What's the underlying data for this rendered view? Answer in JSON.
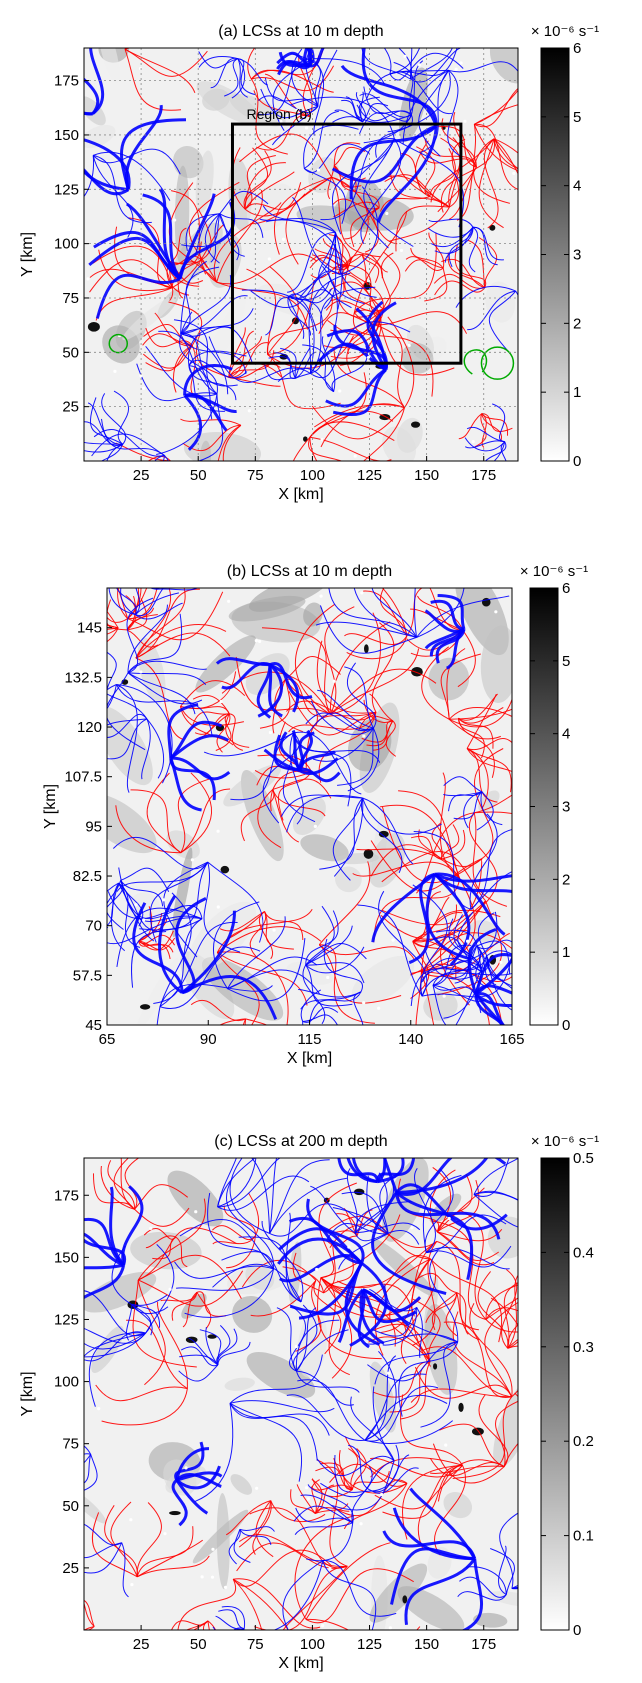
{
  "chart_data": [
    {
      "type": "heatmap",
      "panel": "a",
      "title": "(a) LCSs at 10 m depth",
      "xlabel": "X  [km]",
      "ylabel": "Y [km]",
      "xlim": [
        0,
        190
      ],
      "ylim": [
        0,
        190
      ],
      "xticks": [
        25,
        50,
        75,
        100,
        125,
        150,
        175
      ],
      "yticks": [
        25,
        50,
        75,
        100,
        125,
        150,
        175
      ],
      "grid": true,
      "colorbar": {
        "label": "× 10⁻⁶ s⁻¹",
        "min": 0,
        "max": 6,
        "ticks": [
          0,
          1,
          2,
          3,
          4,
          5,
          6
        ]
      },
      "overlays": [
        {
          "name": "repelling LCS",
          "color": "#ff0000"
        },
        {
          "name": "attracting LCS",
          "color": "#0000ff"
        },
        {
          "name": "eddy boundary",
          "color": "#00aa00"
        }
      ],
      "region": {
        "label": "Region (b)",
        "x": [
          65,
          165
        ],
        "y": [
          45,
          155
        ]
      }
    },
    {
      "type": "heatmap",
      "panel": "b",
      "title": "(b) LCSs at 10 m depth",
      "xlabel": "X  [km]",
      "ylabel": "Y [km]",
      "xlim": [
        65,
        165
      ],
      "ylim": [
        45,
        155
      ],
      "xticks": [
        65,
        90,
        115,
        140,
        165
      ],
      "yticks": [
        45,
        57.5,
        70,
        82.5,
        95,
        107.5,
        120,
        132.5,
        145
      ],
      "grid": false,
      "colorbar": {
        "label": "× 10⁻⁶ s⁻¹",
        "min": 0,
        "max": 6,
        "ticks": [
          0,
          1,
          2,
          3,
          4,
          5,
          6
        ]
      }
    },
    {
      "type": "heatmap",
      "panel": "c",
      "title": "(c) LCSs at 200 m depth",
      "xlabel": "X  [km]",
      "ylabel": "Y [km]",
      "xlim": [
        0,
        190
      ],
      "ylim": [
        0,
        190
      ],
      "xticks": [
        25,
        50,
        75,
        100,
        125,
        150,
        175
      ],
      "yticks": [
        25,
        50,
        75,
        100,
        125,
        150,
        175
      ],
      "grid": false,
      "colorbar": {
        "label": "× 10⁻⁶ s⁻¹",
        "min": 0,
        "max": 0.5,
        "ticks": [
          0,
          0.1,
          0.2,
          0.3,
          0.4,
          0.5
        ]
      }
    }
  ]
}
